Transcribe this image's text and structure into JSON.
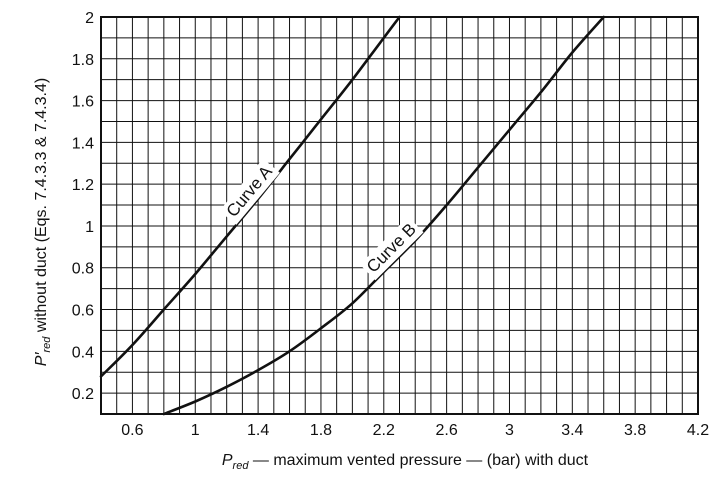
{
  "chart_data": {
    "type": "line",
    "title": "",
    "xlabel": {
      "p": "P",
      "sub": "red",
      "rest": " — maximum vented pressure — (bar) with duct"
    },
    "ylabel": {
      "p": "P′",
      "sub": "red",
      "rest": " without duct (Eqs. 7.4.3.3 & 7.4.3.4)"
    },
    "xlim": [
      0.4,
      4.2
    ],
    "ylim": [
      0.1,
      2.0
    ],
    "grid": true,
    "x_minor_step": 0.1,
    "y_minor_step": 0.1,
    "xticks": [
      0.6,
      1,
      1.4,
      1.8,
      2.2,
      2.6,
      3,
      3.4,
      3.8,
      4.2
    ],
    "xtick_labels": [
      "0.6",
      "1",
      "1.4",
      "1.8",
      "2.2",
      "2.6",
      "3",
      "3.4",
      "3.8",
      "4.2"
    ],
    "yticks": [
      0.2,
      0.4,
      0.6,
      0.8,
      1,
      1.2,
      1.4,
      1.6,
      1.8,
      2
    ],
    "ytick_labels": [
      "0.2",
      "0.4",
      "0.6",
      "0.8",
      "1",
      "1.2",
      "1.4",
      "1.6",
      "1.8",
      "2"
    ],
    "series": [
      {
        "name": "Curve A",
        "x": [
          0.4,
          0.6,
          0.8,
          1.0,
          1.2,
          1.4,
          1.6,
          1.8,
          2.0,
          2.2,
          2.3
        ],
        "y": [
          0.28,
          0.43,
          0.6,
          0.77,
          0.95,
          1.13,
          1.32,
          1.51,
          1.7,
          1.9,
          2.0
        ]
      },
      {
        "name": "Curve B",
        "x": [
          0.8,
          1.0,
          1.2,
          1.4,
          1.6,
          1.8,
          2.0,
          2.2,
          2.4,
          2.6,
          2.8,
          3.0,
          3.2,
          3.4,
          3.6
        ],
        "y": [
          0.1,
          0.16,
          0.23,
          0.31,
          0.4,
          0.51,
          0.63,
          0.78,
          0.93,
          1.1,
          1.28,
          1.46,
          1.64,
          1.83,
          2.0
        ]
      }
    ]
  }
}
